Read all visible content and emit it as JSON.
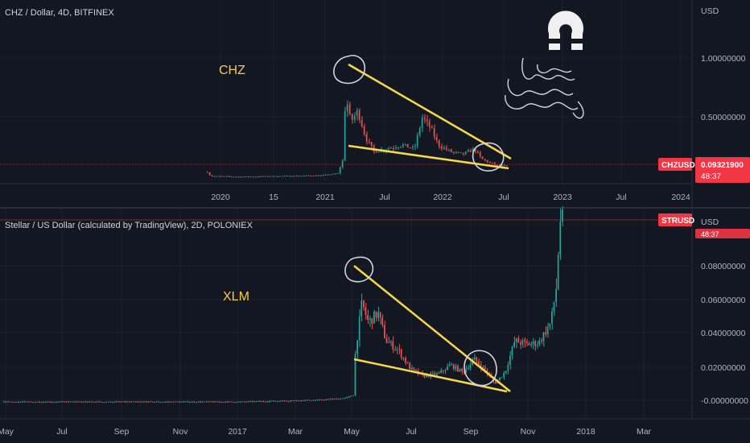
{
  "colors": {
    "background": "#131722",
    "up": "#26a69a",
    "down": "#ef5350",
    "trendline": "#f7d84a",
    "annotation": "#f7c948",
    "price_badge": "#f23645",
    "drawing": "#d1d4dc"
  },
  "icons": [
    "magnet-icon"
  ],
  "chart_data": [
    {
      "type": "candlestick",
      "title": "CHZ / Dollar, 4D, BITFINEX",
      "annotation": "CHZ",
      "y_axis_unit": "USD",
      "y_ticks": [
        "1.00000000",
        "0.50000000"
      ],
      "x_ticks": [
        "2020",
        "15",
        "2021",
        "Jul",
        "2022",
        "Jul",
        "2023",
        "Jul",
        "2024"
      ],
      "price_badge": {
        "symbol": "CHZUSD",
        "price": "0.09321900",
        "countdown": "48:37"
      },
      "ylim": [
        0,
        1.2
      ],
      "series": {
        "x": [
          "2019-11",
          "2020-03",
          "2020-07",
          "2020-11",
          "2021-01",
          "2021-03",
          "2021-04",
          "2021-06",
          "2021-08",
          "2021-10",
          "2021-11",
          "2022-01",
          "2022-03",
          "2022-04",
          "2022-05",
          "2022-06"
        ],
        "close": [
          0.02,
          0.01,
          0.015,
          0.02,
          0.03,
          0.3,
          0.65,
          0.35,
          0.25,
          0.3,
          0.55,
          0.25,
          0.2,
          0.22,
          0.12,
          0.093
        ]
      },
      "trendlines": [
        "upper falling trendline from 2021 high",
        "lower support trendline"
      ]
    },
    {
      "type": "candlestick",
      "title": "Stellar / US Dollar (calculated by TradingView), 2D, POLONIEX",
      "annotation": "XLM",
      "y_axis_unit": "USD",
      "y_ticks": [
        "0.08000000",
        "0.06000000",
        "0.04000000",
        "0.02000000",
        "-0.00000000"
      ],
      "x_ticks": [
        "May",
        "Jul",
        "Sep",
        "Nov",
        "2017",
        "Mar",
        "May",
        "Jul",
        "Sep",
        "Nov",
        "2018",
        "Mar"
      ],
      "price_badge": {
        "symbol": "STRUSD",
        "countdown": "48:37"
      },
      "ylim": [
        -0.005,
        0.105
      ],
      "series": {
        "x": [
          "2016-05",
          "2016-09",
          "2017-01",
          "2017-04",
          "2017-05",
          "2017-06",
          "2017-07",
          "2017-08",
          "2017-09",
          "2017-10",
          "2017-11",
          "2017-12"
        ],
        "close": [
          0.002,
          0.002,
          0.002,
          0.003,
          0.025,
          0.04,
          0.022,
          0.016,
          0.02,
          0.014,
          0.035,
          0.1
        ]
      },
      "trendlines": [
        "upper falling trendline from May 2017 high",
        "lower support trendline"
      ]
    }
  ]
}
